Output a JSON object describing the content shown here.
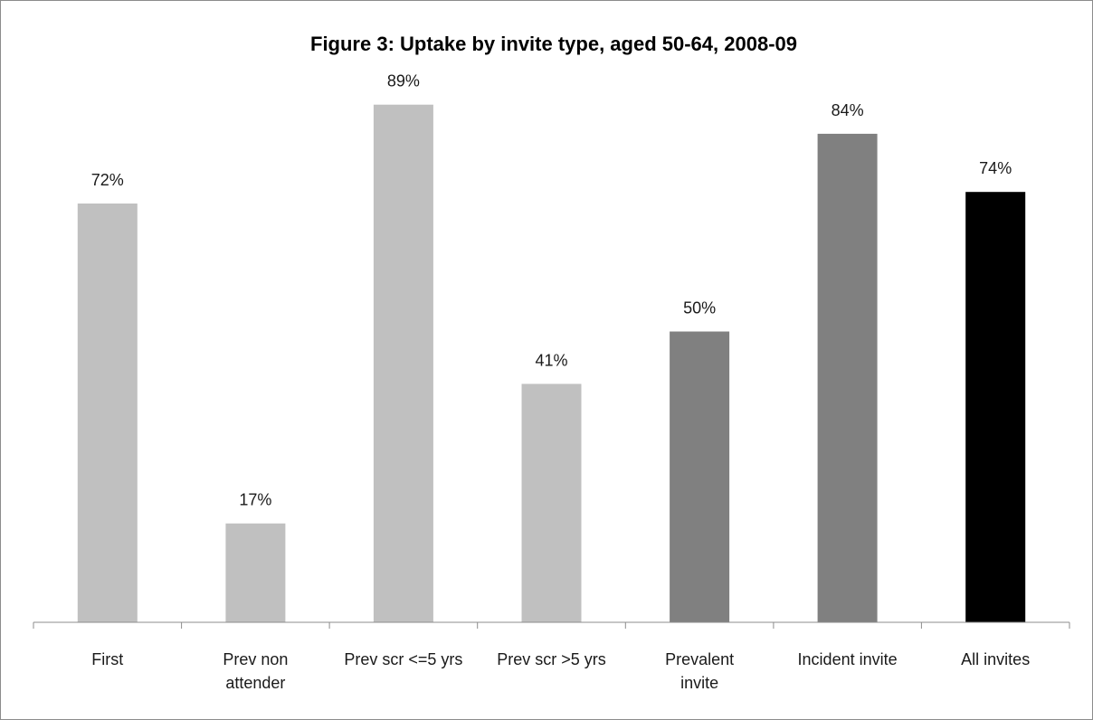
{
  "chart_data": {
    "type": "bar",
    "title": "Figure 3: Uptake by invite type, aged 50-64, 2008-09",
    "xlabel": "",
    "ylabel": "",
    "ylim": [
      0,
      100
    ],
    "grid": false,
    "legend": "none",
    "categories": [
      [
        "First"
      ],
      [
        "Prev non",
        "attender"
      ],
      [
        "Prev scr <=5 yrs"
      ],
      [
        "Prev scr >5 yrs"
      ],
      [
        "Prevalent",
        "invite"
      ],
      [
        "Incident invite"
      ],
      [
        "All invites"
      ]
    ],
    "values": [
      72,
      17,
      89,
      41,
      50,
      84,
      74
    ],
    "data_labels": [
      "72%",
      "17%",
      "89%",
      "41%",
      "50%",
      "84%",
      "74%"
    ],
    "colors": [
      "#c0c0c0",
      "#c0c0c0",
      "#c0c0c0",
      "#c0c0c0",
      "#808080",
      "#808080",
      "#000000"
    ]
  }
}
